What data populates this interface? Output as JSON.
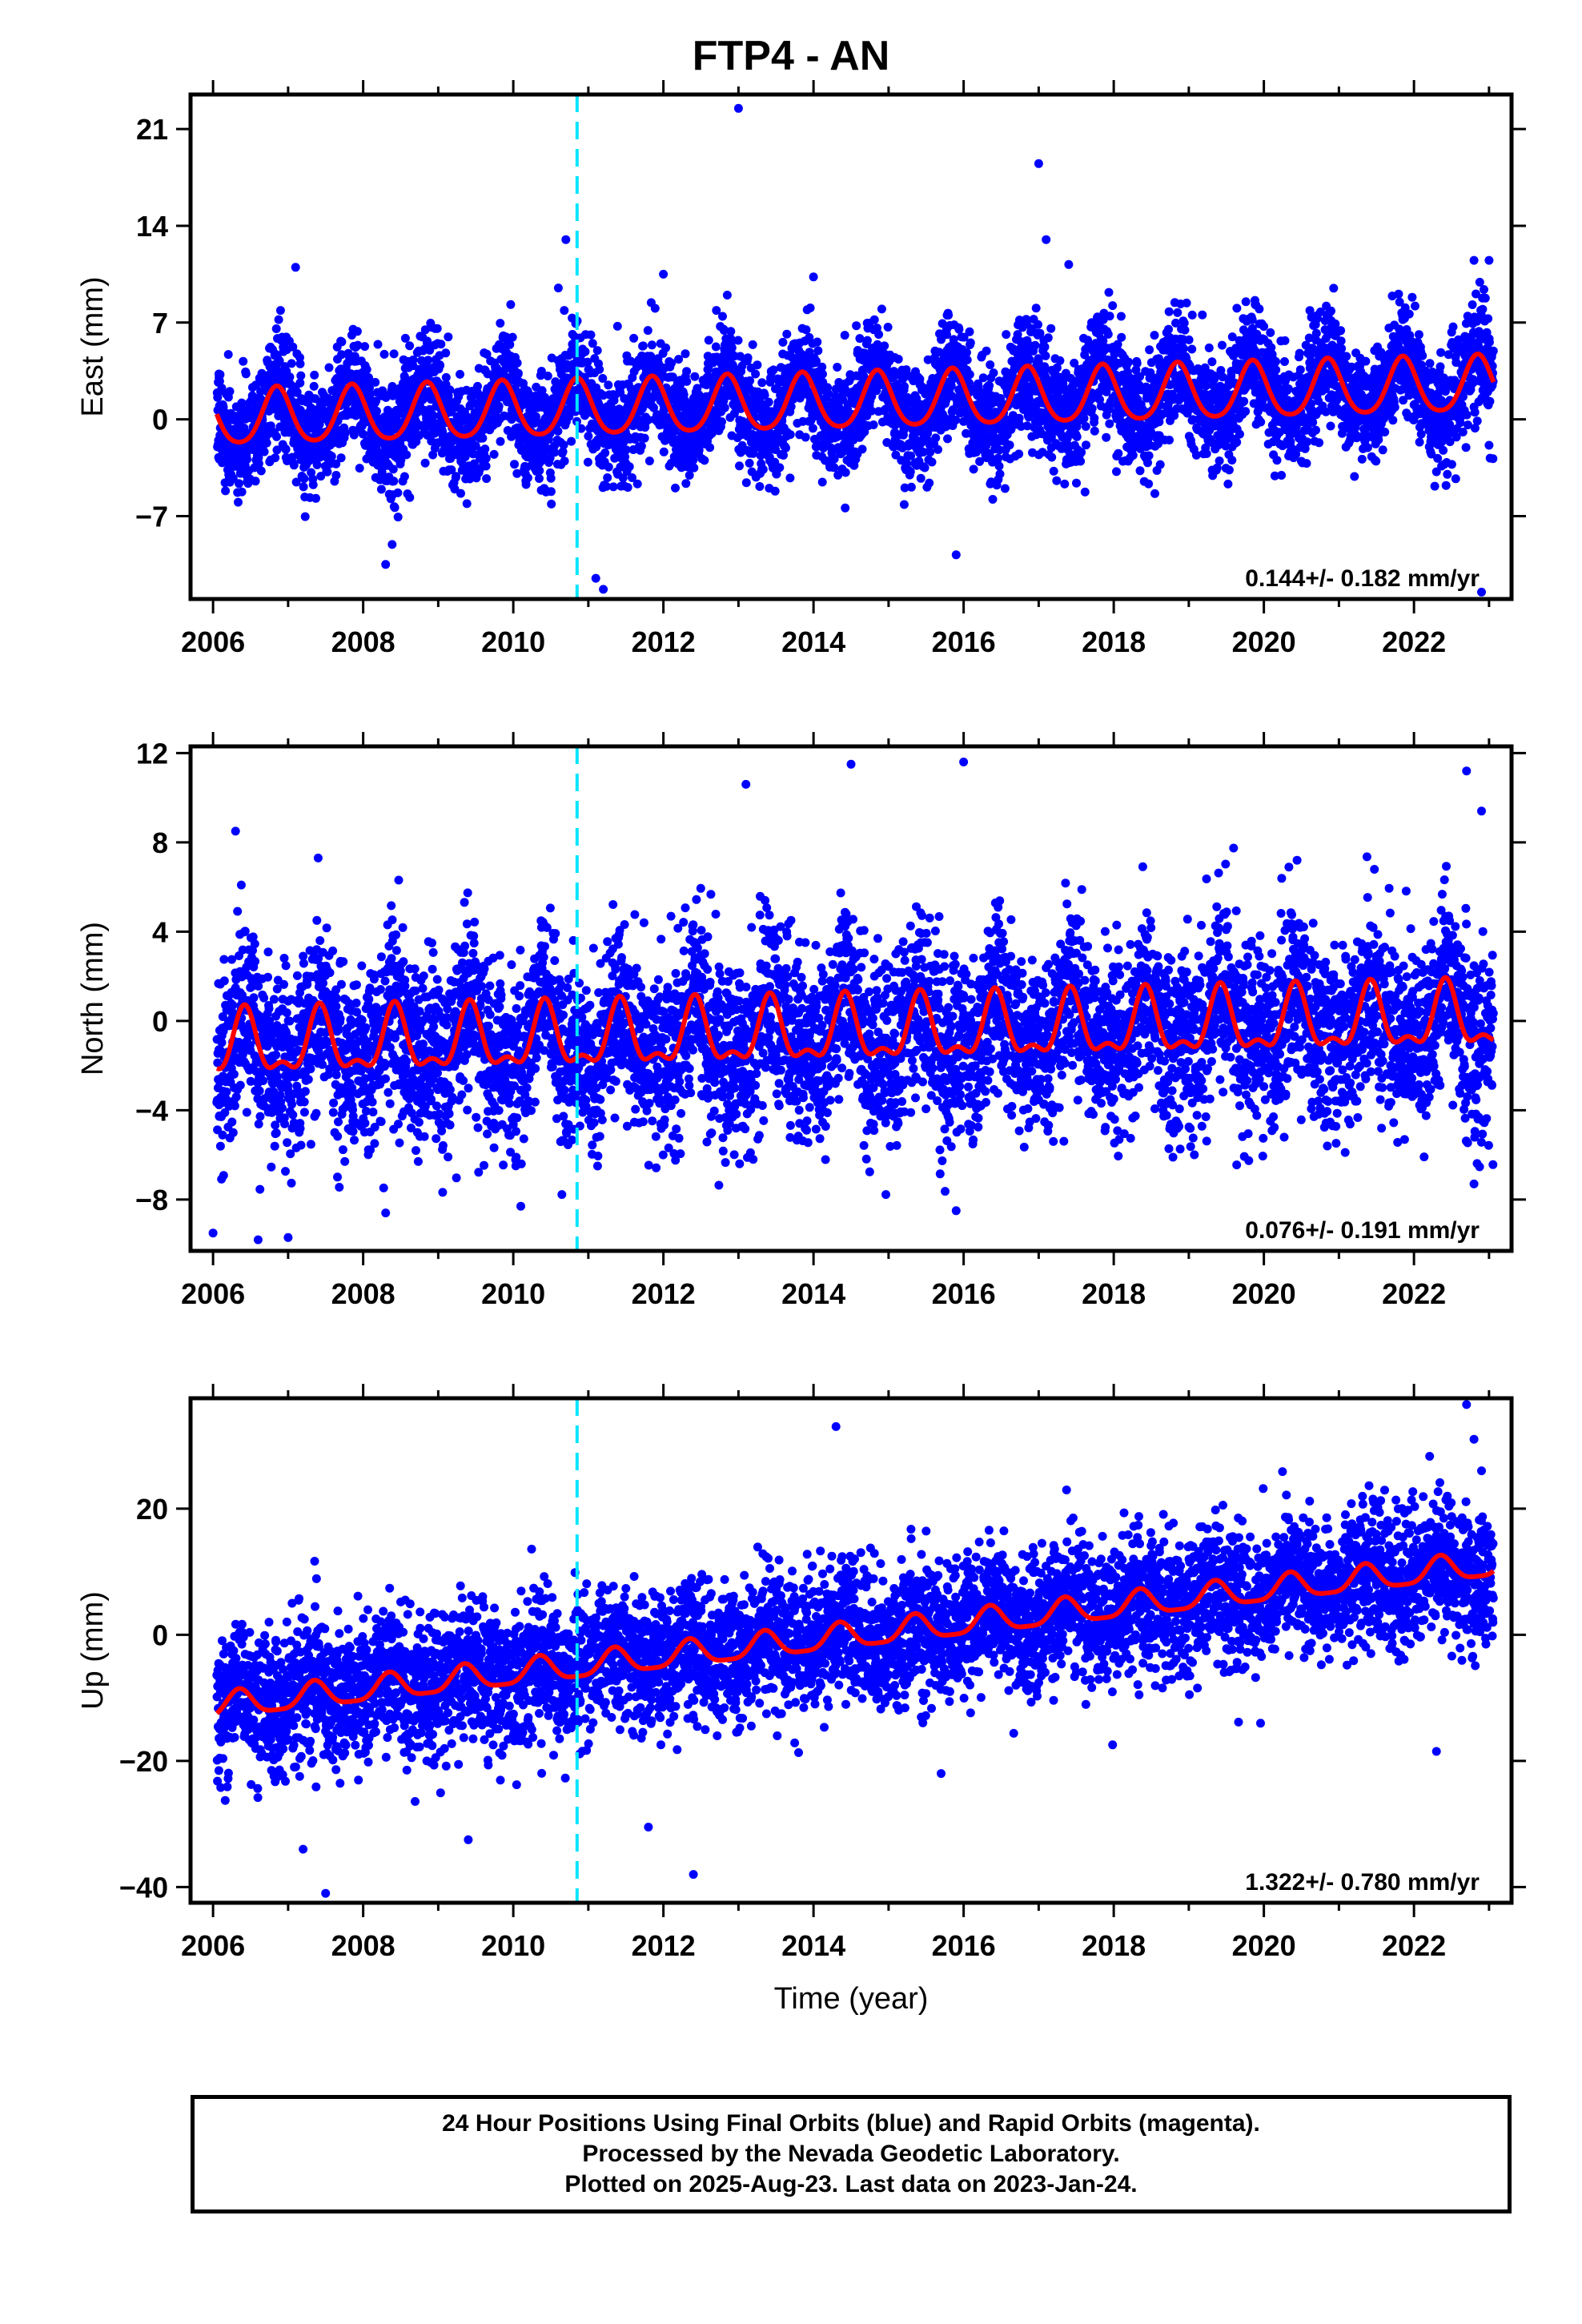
{
  "chart_data": [
    {
      "type": "scatter",
      "title": "FTP4 - AN",
      "ylabel": "East (mm)",
      "xlabel": "",
      "xlim": [
        2005.7,
        2023.3
      ],
      "ylim": [
        -13,
        23.5
      ],
      "xticks": [
        2006,
        2008,
        2010,
        2012,
        2014,
        2016,
        2018,
        2020,
        2022
      ],
      "yticks": [
        -7,
        0,
        7,
        14,
        21
      ],
      "rate_label": "0.144+/- 0.182 mm/yr",
      "discontinuity_year": 2010.85,
      "colors": {
        "points": "#0000ff",
        "model": "#ff0000",
        "discontinuity": "#00e5ff"
      },
      "model": {
        "rate_mm_per_yr": 0.144,
        "offset_mm": 0.0,
        "annual_amplitude_mm": 2.0,
        "semiannual_amplitude_mm": 0.3,
        "annual_phase_peak_year_fraction": 0.85,
        "scatter_sd_mm": 2.0
      },
      "outliers": [
        [
          2013.0,
          22.5
        ],
        [
          2017.0,
          18.5
        ],
        [
          2017.1,
          13.0
        ],
        [
          2010.7,
          13.0
        ],
        [
          2010.6,
          9.5
        ],
        [
          2011.1,
          -11.5
        ],
        [
          2011.2,
          -12.3
        ],
        [
          2008.3,
          -10.5
        ],
        [
          2015.9,
          -9.8
        ],
        [
          2022.9,
          -12.5
        ],
        [
          2012.0,
          10.5
        ],
        [
          2007.1,
          11.0
        ],
        [
          2014.0,
          10.3
        ],
        [
          2017.4,
          11.2
        ],
        [
          2022.8,
          11.5
        ],
        [
          2023.0,
          11.5
        ]
      ]
    },
    {
      "type": "scatter",
      "ylabel": "North (mm)",
      "xlabel": "",
      "xlim": [
        2005.7,
        2023.3
      ],
      "ylim": [
        -10.3,
        12.3
      ],
      "xticks": [
        2006,
        2008,
        2010,
        2012,
        2014,
        2016,
        2018,
        2020,
        2022
      ],
      "yticks": [
        -8,
        -4,
        0,
        4,
        8,
        12
      ],
      "rate_label": "0.076+/- 0.191 mm/yr",
      "discontinuity_year": 2010.85,
      "colors": {
        "points": "#0000ff",
        "model": "#ff0000",
        "discontinuity": "#00e5ff"
      },
      "model": {
        "rate_mm_per_yr": 0.076,
        "offset_mm": -1.2,
        "annual_amplitude_mm": 1.3,
        "semiannual_amplitude_mm": 0.6,
        "annual_phase_peak_year_fraction": 0.42,
        "scatter_sd_mm": 2.0
      },
      "outliers": [
        [
          2006.0,
          -9.5
        ],
        [
          2006.6,
          -9.8
        ],
        [
          2007.0,
          -9.7
        ],
        [
          2006.3,
          8.5
        ],
        [
          2007.4,
          7.3
        ],
        [
          2013.1,
          10.6
        ],
        [
          2014.5,
          11.5
        ],
        [
          2016.0,
          11.6
        ],
        [
          2022.7,
          11.2
        ],
        [
          2022.9,
          9.4
        ],
        [
          2008.3,
          -8.6
        ],
        [
          2015.9,
          -8.5
        ],
        [
          2010.1,
          -8.3
        ],
        [
          2022.8,
          -7.3
        ]
      ]
    },
    {
      "type": "scatter",
      "ylabel": "Up (mm)",
      "xlabel": "Time (year)",
      "xlim": [
        2005.7,
        2023.3
      ],
      "ylim": [
        -42.5,
        37.5
      ],
      "xticks": [
        2006,
        2008,
        2010,
        2012,
        2014,
        2016,
        2018,
        2020,
        2022
      ],
      "yticks": [
        -40,
        -20,
        0,
        20
      ],
      "rate_label": "1.322+/- 0.780 mm/yr",
      "discontinuity_year": 2010.85,
      "colors": {
        "points": "#0000ff",
        "model": "#ff0000",
        "discontinuity": "#00e5ff"
      },
      "model": {
        "rate_mm_per_yr": 1.322,
        "offset_mm": -11.5,
        "annual_amplitude_mm": 2.0,
        "semiannual_amplitude_mm": 0.5,
        "annual_phase_peak_year_fraction": 0.35,
        "scatter_sd_mm": 5.5
      },
      "outliers": [
        [
          2007.5,
          -41
        ],
        [
          2012.4,
          -38
        ],
        [
          2014.3,
          33
        ],
        [
          2022.7,
          36.5
        ],
        [
          2011.8,
          -30.5
        ],
        [
          2009.4,
          -32.5
        ],
        [
          2007.2,
          -34
        ],
        [
          2022.8,
          31
        ],
        [
          2015.7,
          -22
        ],
        [
          2022.3,
          -18.5
        ],
        [
          2022.9,
          26
        ]
      ]
    }
  ],
  "footer": {
    "line1": "24 Hour Positions Using Final Orbits (blue) and Rapid Orbits (magenta).",
    "line2": "Processed by the Nevada Geodetic Laboratory.",
    "line3": "Plotted on 2025-Aug-23. Last data on 2023-Jan-24."
  }
}
